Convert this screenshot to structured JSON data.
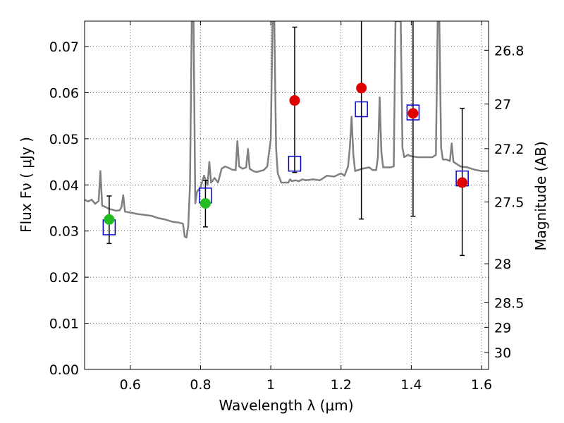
{
  "chart_data": {
    "type": "scatter",
    "title": "",
    "xlabel": "Wavelength  λ (μm)",
    "ylabel": "Flux  Fν ( μJy )",
    "y2label": "Magnitude (AB)",
    "xlim": [
      0.47,
      1.62
    ],
    "ylim": [
      0.0,
      0.0755
    ],
    "grid": true,
    "grid_style": "dotted",
    "x_ticks": [
      0.6,
      0.8,
      1.0,
      1.2,
      1.4,
      1.6
    ],
    "x_tick_labels": [
      "0.6",
      "0.8",
      "1",
      "1.2",
      "1.4",
      "1.6"
    ],
    "y_ticks": [
      0.0,
      0.01,
      0.02,
      0.03,
      0.04,
      0.05,
      0.06,
      0.07
    ],
    "y_tick_labels": [
      "0.00",
      "0.01",
      "0.02",
      "0.03",
      "0.04",
      "0.05",
      "0.06",
      "0.07"
    ],
    "y2_ticks": [
      26.8,
      27.0,
      27.2,
      27.5,
      28.0,
      28.5,
      29.0,
      30.0
    ],
    "y2_tick_labels": [
      "26.8",
      "27",
      "27.2",
      "27.5",
      "28",
      "28.5",
      "29",
      "30"
    ],
    "series": [
      {
        "marker": "line",
        "color": "#808080",
        "points": [
          [
            0.47,
            0.0368
          ],
          [
            0.48,
            0.0364
          ],
          [
            0.49,
            0.0368
          ],
          [
            0.5,
            0.0359
          ],
          [
            0.51,
            0.0365
          ],
          [
            0.515,
            0.043
          ],
          [
            0.52,
            0.0355
          ],
          [
            0.53,
            0.0352
          ],
          [
            0.54,
            0.0348
          ],
          [
            0.55,
            0.0346
          ],
          [
            0.56,
            0.0344
          ],
          [
            0.57,
            0.0345
          ],
          [
            0.575,
            0.0352
          ],
          [
            0.58,
            0.0378
          ],
          [
            0.585,
            0.0342
          ],
          [
            0.6,
            0.034
          ],
          [
            0.62,
            0.0337
          ],
          [
            0.64,
            0.0335
          ],
          [
            0.66,
            0.0333
          ],
          [
            0.68,
            0.0328
          ],
          [
            0.7,
            0.0325
          ],
          [
            0.72,
            0.032
          ],
          [
            0.74,
            0.0318
          ],
          [
            0.75,
            0.0316
          ],
          [
            0.755,
            0.0288
          ],
          [
            0.76,
            0.0286
          ],
          [
            0.765,
            0.031
          ],
          [
            0.77,
            0.04
          ],
          [
            0.775,
            0.0755
          ],
          [
            0.78,
            0.0755
          ],
          [
            0.785,
            0.036
          ],
          [
            0.79,
            0.0385
          ],
          [
            0.8,
            0.0395
          ],
          [
            0.81,
            0.042
          ],
          [
            0.82,
            0.04
          ],
          [
            0.825,
            0.045
          ],
          [
            0.83,
            0.0405
          ],
          [
            0.84,
            0.0415
          ],
          [
            0.85,
            0.0405
          ],
          [
            0.86,
            0.0435
          ],
          [
            0.87,
            0.044
          ],
          [
            0.88,
            0.0437
          ],
          [
            0.89,
            0.0433
          ],
          [
            0.9,
            0.0432
          ],
          [
            0.905,
            0.0495
          ],
          [
            0.91,
            0.044
          ],
          [
            0.92,
            0.0435
          ],
          [
            0.93,
            0.0438
          ],
          [
            0.935,
            0.0478
          ],
          [
            0.94,
            0.0435
          ],
          [
            0.95,
            0.043
          ],
          [
            0.96,
            0.0428
          ],
          [
            0.97,
            0.043
          ],
          [
            0.98,
            0.0432
          ],
          [
            0.99,
            0.044
          ],
          [
            1.0,
            0.05
          ],
          [
            1.005,
            0.0755
          ],
          [
            1.01,
            0.0755
          ],
          [
            1.015,
            0.048
          ],
          [
            1.02,
            0.0425
          ],
          [
            1.03,
            0.0405
          ],
          [
            1.04,
            0.0405
          ],
          [
            1.05,
            0.0405
          ],
          [
            1.055,
            0.0412
          ],
          [
            1.06,
            0.0408
          ],
          [
            1.07,
            0.041
          ],
          [
            1.08,
            0.0408
          ],
          [
            1.09,
            0.0412
          ],
          [
            1.1,
            0.041
          ],
          [
            1.12,
            0.0412
          ],
          [
            1.14,
            0.041
          ],
          [
            1.15,
            0.0415
          ],
          [
            1.16,
            0.042
          ],
          [
            1.18,
            0.0418
          ],
          [
            1.2,
            0.0425
          ],
          [
            1.21,
            0.042
          ],
          [
            1.22,
            0.044
          ],
          [
            1.225,
            0.048
          ],
          [
            1.23,
            0.0548
          ],
          [
            1.235,
            0.0465
          ],
          [
            1.24,
            0.043
          ],
          [
            1.26,
            0.0435
          ],
          [
            1.28,
            0.0438
          ],
          [
            1.29,
            0.0432
          ],
          [
            1.3,
            0.0432
          ],
          [
            1.305,
            0.046
          ],
          [
            1.31,
            0.059
          ],
          [
            1.315,
            0.047
          ],
          [
            1.32,
            0.0438
          ],
          [
            1.34,
            0.0438
          ],
          [
            1.35,
            0.044
          ],
          [
            1.355,
            0.0755
          ],
          [
            1.36,
            0.0755
          ],
          [
            1.37,
            0.0755
          ],
          [
            1.375,
            0.048
          ],
          [
            1.38,
            0.046
          ],
          [
            1.39,
            0.0465
          ],
          [
            1.4,
            0.0462
          ],
          [
            1.42,
            0.046
          ],
          [
            1.44,
            0.046
          ],
          [
            1.46,
            0.046
          ],
          [
            1.47,
            0.0465
          ],
          [
            1.475,
            0.0755
          ],
          [
            1.48,
            0.0755
          ],
          [
            1.485,
            0.048
          ],
          [
            1.49,
            0.0455
          ],
          [
            1.5,
            0.0455
          ],
          [
            1.51,
            0.0452
          ],
          [
            1.515,
            0.049
          ],
          [
            1.52,
            0.045
          ],
          [
            1.54,
            0.044
          ],
          [
            1.56,
            0.0438
          ],
          [
            1.58,
            0.0433
          ],
          [
            1.6,
            0.043
          ],
          [
            1.62,
            0.043
          ]
        ]
      },
      {
        "marker": "errorbar",
        "color": "#000000",
        "points": [
          {
            "x": 0.54,
            "y": 0.0325,
            "low": 0.0273,
            "high": 0.0376
          },
          {
            "x": 0.814,
            "y": 0.036,
            "low": 0.0309,
            "high": 0.041
          },
          {
            "x": 1.068,
            "y": 0.0583,
            "low": 0.0427,
            "high": 0.0742
          },
          {
            "x": 1.258,
            "y": 0.061,
            "low": 0.0326,
            "high": 0.0755
          },
          {
            "x": 1.405,
            "y": 0.0555,
            "low": 0.0332,
            "high": 0.0755
          },
          {
            "x": 1.545,
            "y": 0.0405,
            "low": 0.0247,
            "high": 0.0566
          }
        ]
      },
      {
        "marker": "open-square",
        "color": "#0000cc",
        "points": [
          [
            0.54,
            0.0308
          ],
          [
            0.814,
            0.0377
          ],
          [
            1.068,
            0.0446
          ],
          [
            1.258,
            0.0564
          ],
          [
            1.405,
            0.0557
          ],
          [
            1.545,
            0.0414
          ]
        ]
      },
      {
        "marker": "circle",
        "color": "#e00000",
        "points": [
          [
            1.068,
            0.0583
          ],
          [
            1.258,
            0.061
          ],
          [
            1.405,
            0.0555
          ],
          [
            1.545,
            0.0405
          ]
        ]
      },
      {
        "marker": "circle",
        "color": "#22bb22",
        "points": [
          [
            0.54,
            0.0325
          ],
          [
            0.814,
            0.036
          ]
        ]
      }
    ]
  }
}
